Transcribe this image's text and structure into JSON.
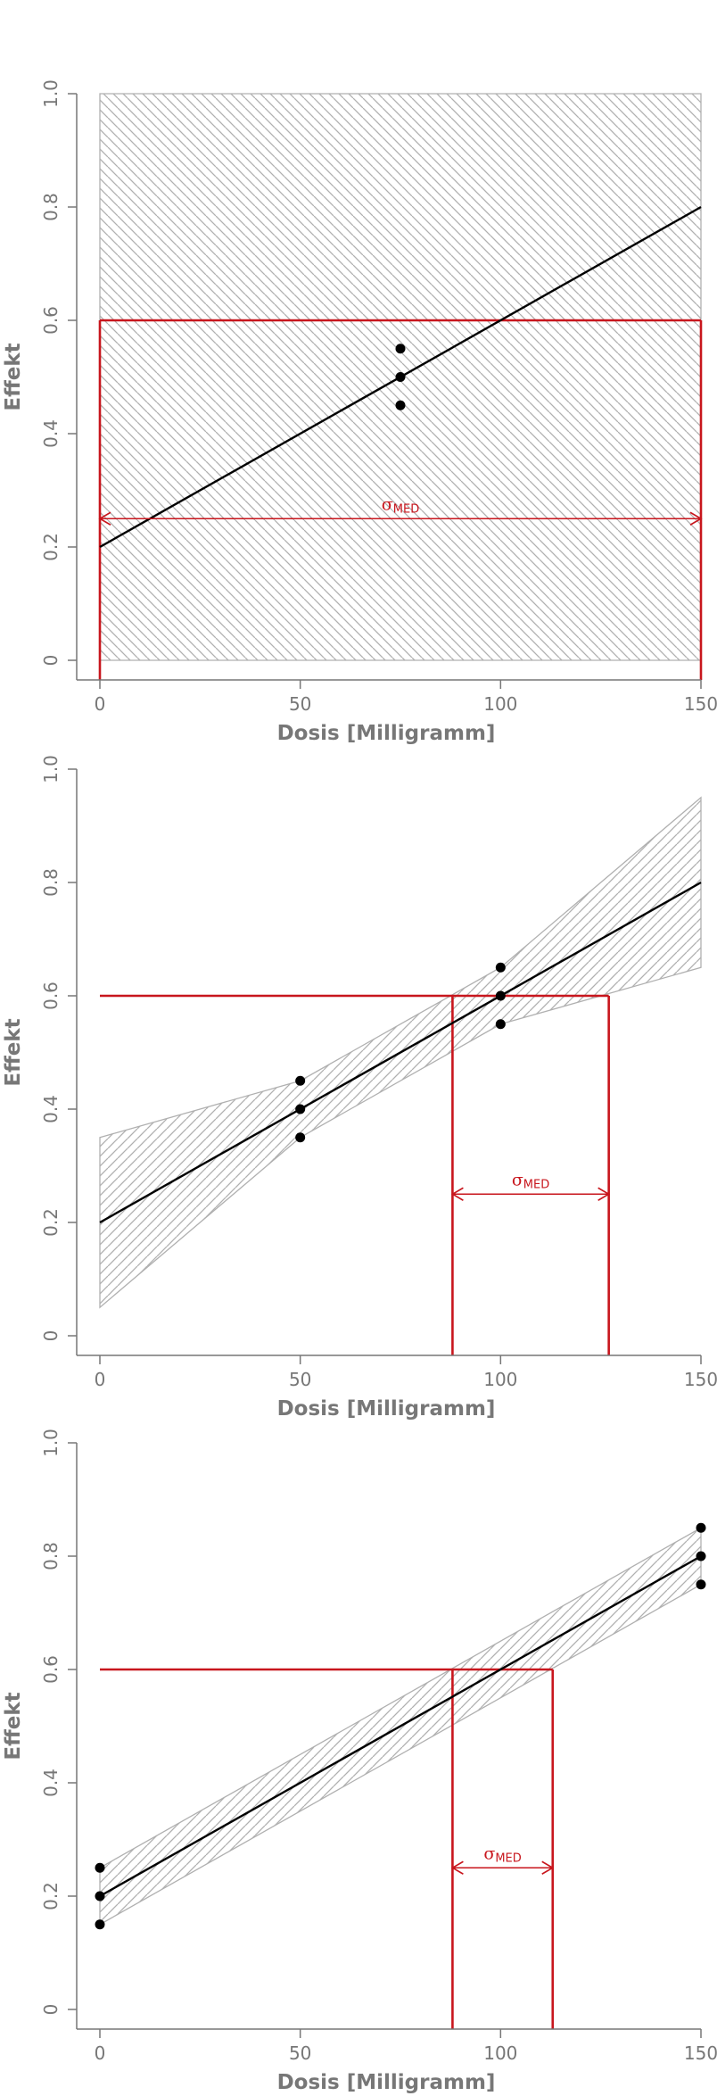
{
  "chart_data": [
    {
      "type": "line",
      "title": "",
      "xlabel": "Dosis [Milligramm]",
      "ylabel": "Effekt",
      "xlim": [
        0,
        150
      ],
      "ylim": [
        0,
        1.0
      ],
      "xticks": [
        0,
        50,
        100,
        150
      ],
      "xtick_labels": [
        "0",
        "50",
        "100",
        "150"
      ],
      "yticks": [
        0,
        0.2,
        0.4,
        0.6,
        0.8,
        1.0
      ],
      "ytick_labels": [
        "0",
        "0.2",
        "0.4",
        "0.6",
        "0.8",
        "1.0"
      ],
      "grid": false,
      "regression_line": {
        "x": [
          0,
          150
        ],
        "y": [
          0.2,
          0.8
        ]
      },
      "points": [
        {
          "x": 75,
          "y": 0.55
        },
        {
          "x": 75,
          "y": 0.5
        },
        {
          "x": 75,
          "y": 0.45
        }
      ],
      "confidence_band": {
        "x": [
          0,
          150
        ],
        "lower": [
          0.0,
          0.0
        ],
        "upper": [
          1.0,
          1.0
        ]
      },
      "target_effect": 0.6,
      "med_interval": [
        0,
        150
      ],
      "annotation": {
        "symbol": "σ",
        "subscript": "MED",
        "y": 0.25
      },
      "colors": {
        "line": "#000000",
        "band": "#b0b0b0",
        "target": "#c8161d",
        "axis": "#777777"
      }
    },
    {
      "type": "line",
      "title": "",
      "xlabel": "Dosis [Milligramm]",
      "ylabel": "Effekt",
      "xlim": [
        0,
        150
      ],
      "ylim": [
        0,
        1.0
      ],
      "xticks": [
        0,
        50,
        100,
        150
      ],
      "xtick_labels": [
        "0",
        "50",
        "100",
        "150"
      ],
      "yticks": [
        0,
        0.2,
        0.4,
        0.6,
        0.8,
        1.0
      ],
      "ytick_labels": [
        "0",
        "0.2",
        "0.4",
        "0.6",
        "0.8",
        "1.0"
      ],
      "grid": false,
      "regression_line": {
        "x": [
          0,
          150
        ],
        "y": [
          0.2,
          0.8
        ]
      },
      "points": [
        {
          "x": 50,
          "y": 0.45
        },
        {
          "x": 50,
          "y": 0.4
        },
        {
          "x": 50,
          "y": 0.35
        },
        {
          "x": 100,
          "y": 0.65
        },
        {
          "x": 100,
          "y": 0.6
        },
        {
          "x": 100,
          "y": 0.55
        }
      ],
      "confidence_band": {
        "x": [
          0,
          50,
          100,
          150
        ],
        "lower": [
          0.05,
          0.35,
          0.55,
          0.65
        ],
        "upper": [
          0.35,
          0.45,
          0.65,
          0.95
        ]
      },
      "target_effect": 0.6,
      "med_interval": [
        88,
        127
      ],
      "annotation": {
        "symbol": "σ",
        "subscript": "MED",
        "y": 0.25
      },
      "colors": {
        "line": "#000000",
        "band": "#b0b0b0",
        "target": "#c8161d",
        "axis": "#777777"
      }
    },
    {
      "type": "line",
      "title": "",
      "xlabel": "Dosis [Milligramm]",
      "ylabel": "Effekt",
      "xlim": [
        0,
        150
      ],
      "ylim": [
        0,
        1.0
      ],
      "xticks": [
        0,
        50,
        100,
        150
      ],
      "xtick_labels": [
        "0",
        "50",
        "100",
        "150"
      ],
      "yticks": [
        0,
        0.2,
        0.4,
        0.6,
        0.8,
        1.0
      ],
      "ytick_labels": [
        "0",
        "0.2",
        "0.4",
        "0.6",
        "0.8",
        "1.0"
      ],
      "grid": false,
      "regression_line": {
        "x": [
          0,
          150
        ],
        "y": [
          0.2,
          0.8
        ]
      },
      "points": [
        {
          "x": 0,
          "y": 0.25
        },
        {
          "x": 0,
          "y": 0.2
        },
        {
          "x": 0,
          "y": 0.15
        },
        {
          "x": 150,
          "y": 0.85
        },
        {
          "x": 150,
          "y": 0.8
        },
        {
          "x": 150,
          "y": 0.75
        }
      ],
      "confidence_band": {
        "x": [
          0,
          150
        ],
        "lower": [
          0.15,
          0.75
        ],
        "upper": [
          0.25,
          0.85
        ]
      },
      "target_effect": 0.6,
      "med_interval": [
        88,
        113
      ],
      "annotation": {
        "symbol": "σ",
        "subscript": "MED",
        "y": 0.25
      },
      "colors": {
        "line": "#000000",
        "band": "#b0b0b0",
        "target": "#c8161d",
        "axis": "#777777"
      }
    }
  ]
}
